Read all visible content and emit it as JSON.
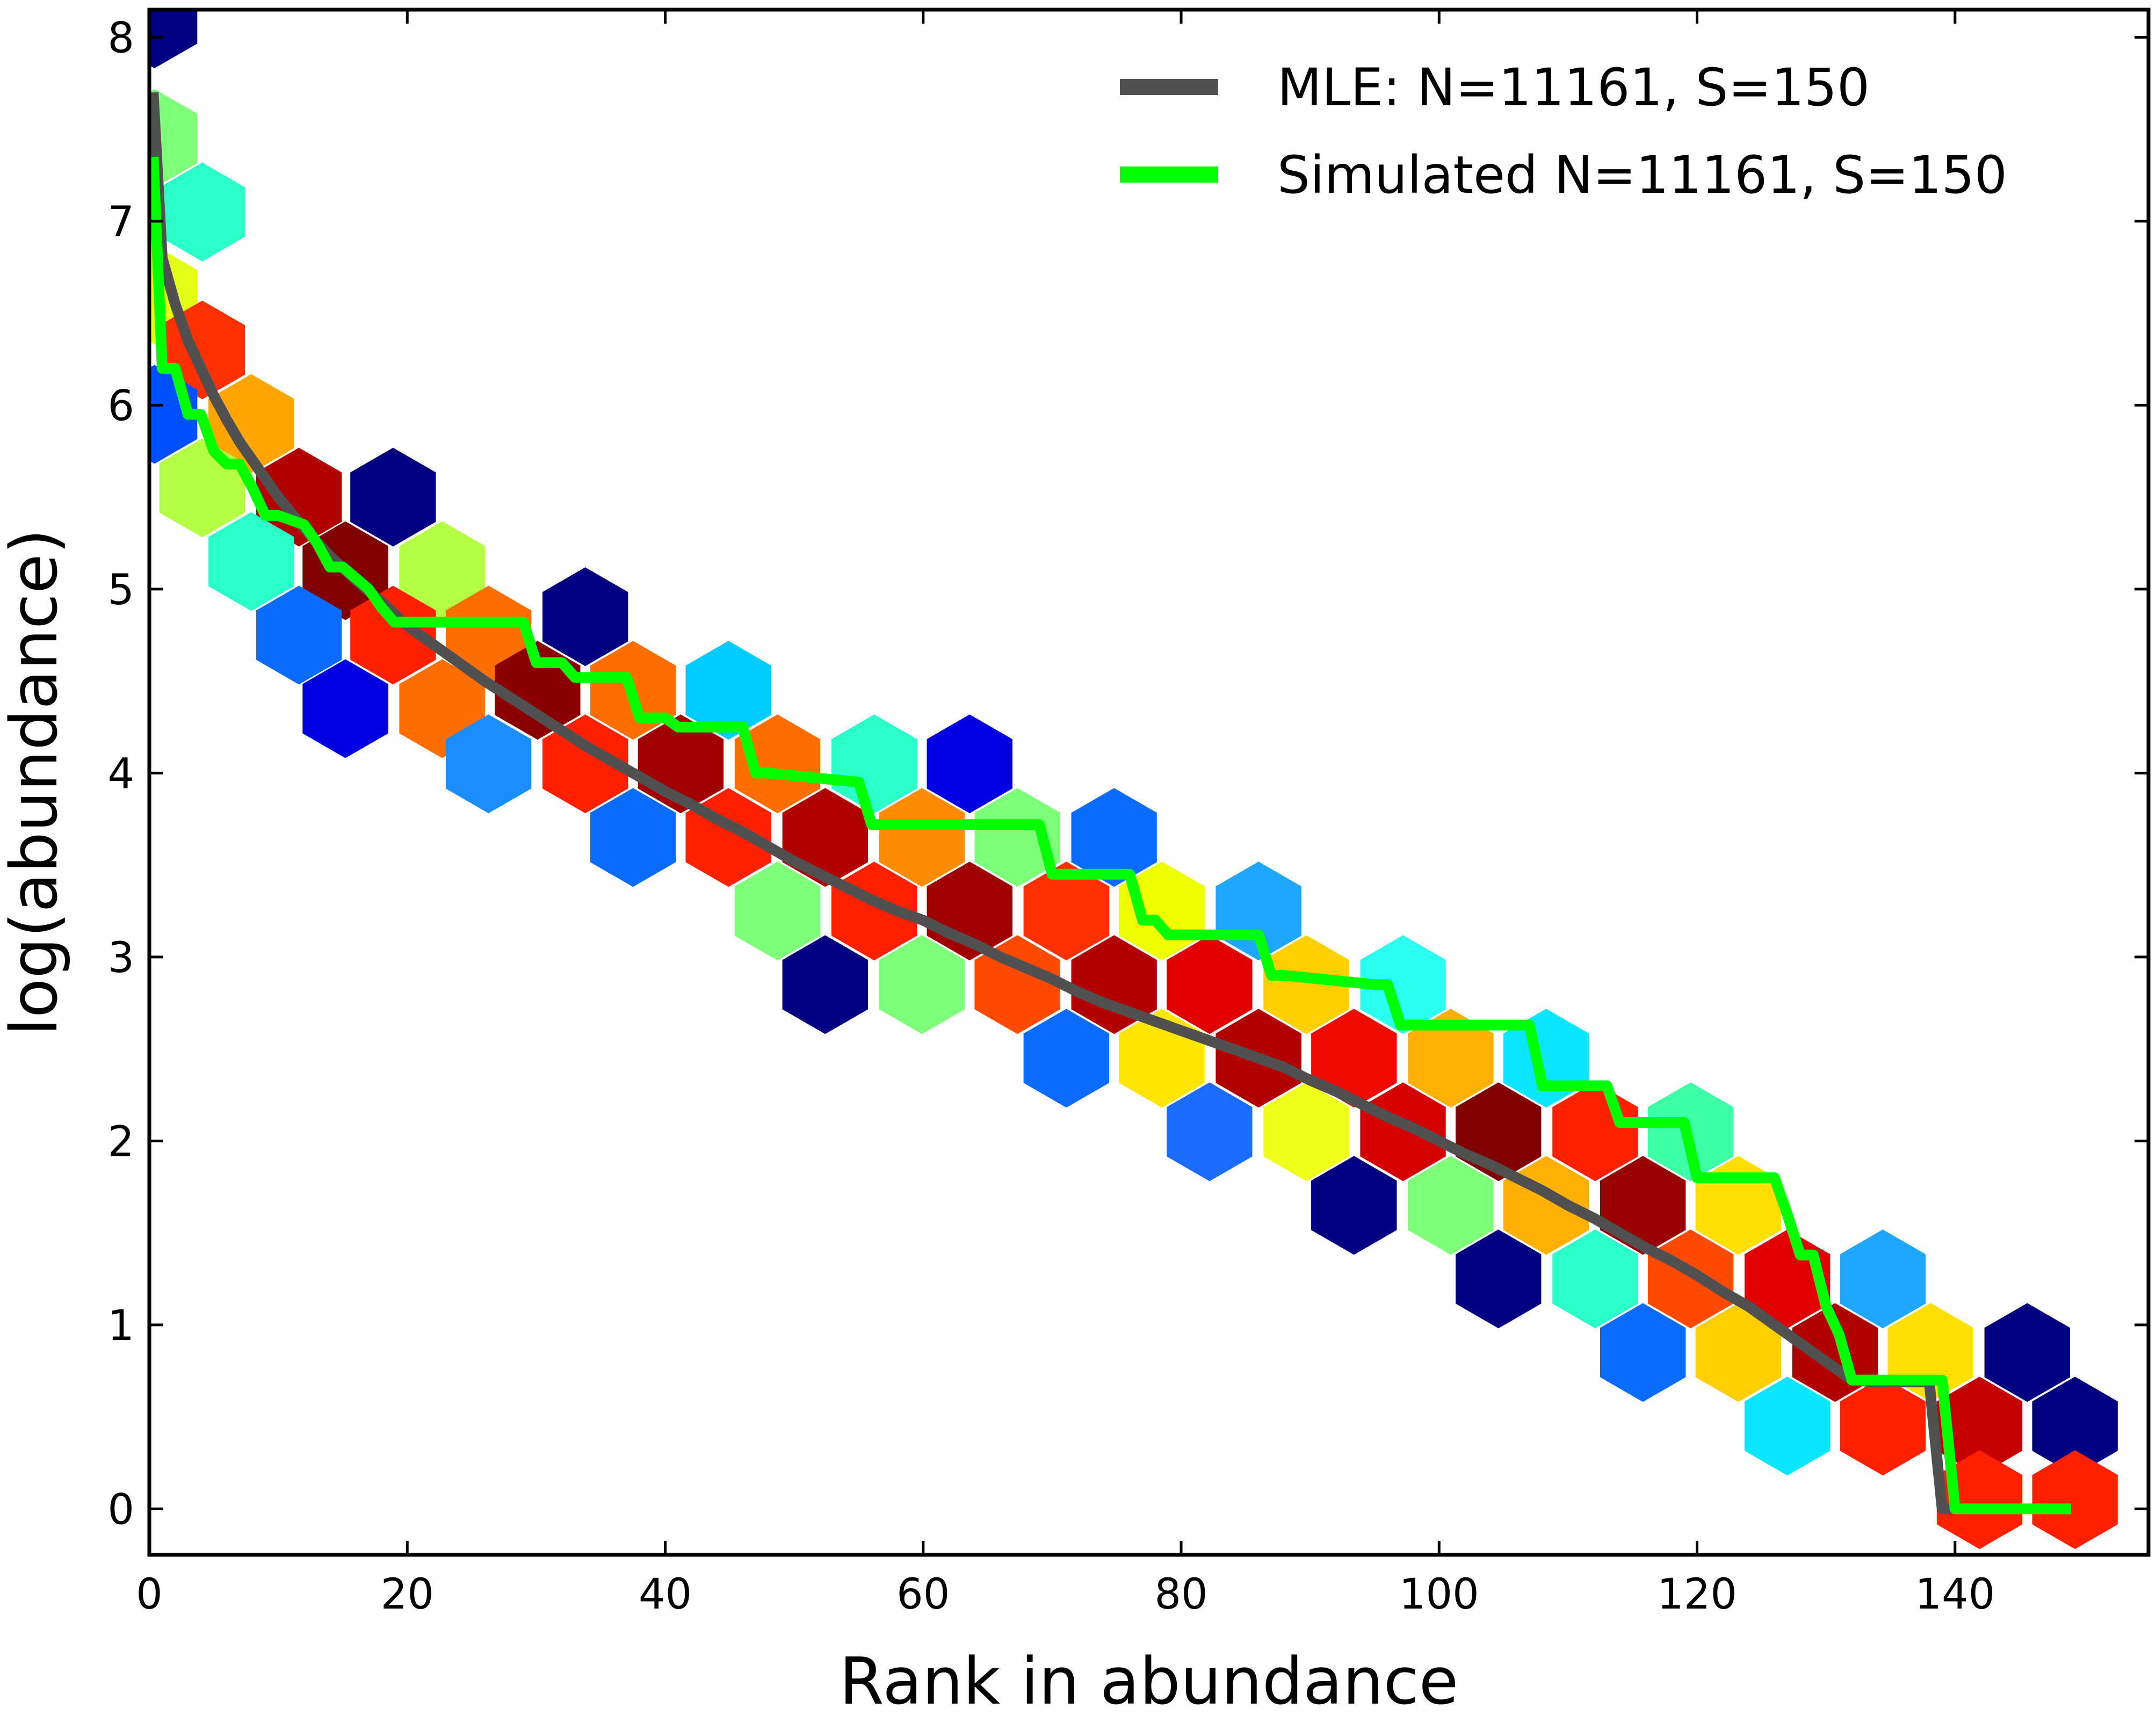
{
  "chart_data": {
    "type": "hexbin",
    "title": "",
    "xlabel": "Rank in abundance",
    "ylabel": "log(abundance)",
    "xlim": [
      0,
      155
    ],
    "ylim": [
      -0.25,
      8.15
    ],
    "xticks": [
      0,
      20,
      40,
      60,
      80,
      100,
      120,
      140
    ],
    "yticks": [
      0,
      1,
      2,
      3,
      4,
      5,
      6,
      7,
      8
    ],
    "grid": false,
    "legend_position": "top-right",
    "colormap": "jet",
    "hexbins": [
      {
        "x": 0.4,
        "y": 8.1,
        "color": "#000080"
      },
      {
        "x": 0.4,
        "y": 7.45,
        "color": "#7dff7a"
      },
      {
        "x": 4.1,
        "y": 7.05,
        "color": "#2bffca"
      },
      {
        "x": 0.4,
        "y": 6.6,
        "color": "#e4ff13"
      },
      {
        "x": 4.1,
        "y": 6.3,
        "color": "#ff3000"
      },
      {
        "x": 0.4,
        "y": 5.95,
        "color": "#0050ff"
      },
      {
        "x": 7.9,
        "y": 5.9,
        "color": "#ffa600"
      },
      {
        "x": 4.1,
        "y": 5.55,
        "color": "#b4ff43"
      },
      {
        "x": 11.6,
        "y": 5.5,
        "color": "#b20000"
      },
      {
        "x": 18.9,
        "y": 5.5,
        "color": "#000080"
      },
      {
        "x": 15.2,
        "y": 5.1,
        "color": "#800000"
      },
      {
        "x": 22.7,
        "y": 5.1,
        "color": "#b4ff43"
      },
      {
        "x": 7.9,
        "y": 5.15,
        "color": "#2bffca"
      },
      {
        "x": 11.6,
        "y": 4.75,
        "color": "#0a6cff"
      },
      {
        "x": 18.9,
        "y": 4.75,
        "color": "#ff2000"
      },
      {
        "x": 26.3,
        "y": 4.75,
        "color": "#ff6f00"
      },
      {
        "x": 33.8,
        "y": 4.85,
        "color": "#000080"
      },
      {
        "x": 15.2,
        "y": 4.35,
        "color": "#0000e0"
      },
      {
        "x": 22.7,
        "y": 4.35,
        "color": "#ff6f00"
      },
      {
        "x": 30.1,
        "y": 4.45,
        "color": "#8a0000"
      },
      {
        "x": 37.5,
        "y": 4.45,
        "color": "#ff6f00"
      },
      {
        "x": 44.9,
        "y": 4.45,
        "color": "#00ccff"
      },
      {
        "x": 26.3,
        "y": 4.05,
        "color": "#1b8dff"
      },
      {
        "x": 33.8,
        "y": 4.05,
        "color": "#ff2000"
      },
      {
        "x": 41.2,
        "y": 4.05,
        "color": "#a00000"
      },
      {
        "x": 48.7,
        "y": 4.05,
        "color": "#ff6f00"
      },
      {
        "x": 56.2,
        "y": 4.05,
        "color": "#2bffca"
      },
      {
        "x": 63.6,
        "y": 4.05,
        "color": "#0000e0"
      },
      {
        "x": 37.5,
        "y": 3.65,
        "color": "#0a6cff"
      },
      {
        "x": 44.9,
        "y": 3.65,
        "color": "#ff2000"
      },
      {
        "x": 52.4,
        "y": 3.65,
        "color": "#b20000"
      },
      {
        "x": 59.9,
        "y": 3.65,
        "color": "#ff8c00"
      },
      {
        "x": 67.3,
        "y": 3.65,
        "color": "#7dff7a"
      },
      {
        "x": 74.8,
        "y": 3.65,
        "color": "#0a6cff"
      },
      {
        "x": 48.7,
        "y": 3.25,
        "color": "#7dff7a"
      },
      {
        "x": 56.2,
        "y": 3.25,
        "color": "#ff2000"
      },
      {
        "x": 63.6,
        "y": 3.25,
        "color": "#a00000"
      },
      {
        "x": 71.1,
        "y": 3.25,
        "color": "#ff3000"
      },
      {
        "x": 78.5,
        "y": 3.25,
        "color": "#eeff00"
      },
      {
        "x": 86.0,
        "y": 3.25,
        "color": "#1fa6ff"
      },
      {
        "x": 52.4,
        "y": 2.85,
        "color": "#000080"
      },
      {
        "x": 59.9,
        "y": 2.85,
        "color": "#7dff7a"
      },
      {
        "x": 67.3,
        "y": 2.85,
        "color": "#ff4a00"
      },
      {
        "x": 74.8,
        "y": 2.85,
        "color": "#b20000"
      },
      {
        "x": 82.2,
        "y": 2.85,
        "color": "#e00000"
      },
      {
        "x": 89.7,
        "y": 2.85,
        "color": "#ffd000"
      },
      {
        "x": 97.2,
        "y": 2.85,
        "color": "#2bfff0"
      },
      {
        "x": 71.1,
        "y": 2.45,
        "color": "#0a6cff"
      },
      {
        "x": 78.5,
        "y": 2.45,
        "color": "#ffe600"
      },
      {
        "x": 86.0,
        "y": 2.45,
        "color": "#b20000"
      },
      {
        "x": 93.4,
        "y": 2.45,
        "color": "#ee0a00"
      },
      {
        "x": 100.9,
        "y": 2.45,
        "color": "#ffb000"
      },
      {
        "x": 108.3,
        "y": 2.45,
        "color": "#0ae6ff"
      },
      {
        "x": 82.2,
        "y": 2.05,
        "color": "#1b6bff"
      },
      {
        "x": 89.7,
        "y": 2.05,
        "color": "#eeff1a"
      },
      {
        "x": 97.2,
        "y": 2.05,
        "color": "#d40000"
      },
      {
        "x": 104.6,
        "y": 2.05,
        "color": "#800000"
      },
      {
        "x": 112.1,
        "y": 2.05,
        "color": "#ff2000"
      },
      {
        "x": 119.5,
        "y": 2.05,
        "color": "#3dffa6"
      },
      {
        "x": 93.4,
        "y": 1.65,
        "color": "#000080"
      },
      {
        "x": 100.9,
        "y": 1.65,
        "color": "#7dff7a"
      },
      {
        "x": 108.3,
        "y": 1.65,
        "color": "#ffb000"
      },
      {
        "x": 115.8,
        "y": 1.65,
        "color": "#980000"
      },
      {
        "x": 123.2,
        "y": 1.65,
        "color": "#ffe000"
      },
      {
        "x": 104.6,
        "y": 1.25,
        "color": "#000080"
      },
      {
        "x": 112.1,
        "y": 1.25,
        "color": "#2bffca"
      },
      {
        "x": 119.5,
        "y": 1.25,
        "color": "#ff4a00"
      },
      {
        "x": 127.0,
        "y": 1.25,
        "color": "#e00000"
      },
      {
        "x": 134.4,
        "y": 1.25,
        "color": "#1fa6ff"
      },
      {
        "x": 115.8,
        "y": 0.85,
        "color": "#0a6cff"
      },
      {
        "x": 123.2,
        "y": 0.85,
        "color": "#ffd000"
      },
      {
        "x": 130.7,
        "y": 0.85,
        "color": "#b00000"
      },
      {
        "x": 138.1,
        "y": 0.85,
        "color": "#ffe000"
      },
      {
        "x": 145.6,
        "y": 0.85,
        "color": "#000080"
      },
      {
        "x": 127.0,
        "y": 0.45,
        "color": "#0ae6ff"
      },
      {
        "x": 134.4,
        "y": 0.45,
        "color": "#ff2000"
      },
      {
        "x": 141.9,
        "y": 0.45,
        "color": "#c40000"
      },
      {
        "x": 149.3,
        "y": 0.45,
        "color": "#000080"
      },
      {
        "x": 141.9,
        "y": 0.05,
        "color": "#ff2000"
      },
      {
        "x": 149.3,
        "y": 0.05,
        "color": "#ff2000"
      }
    ],
    "series": [
      {
        "name": "MLE: N=11161, S=150",
        "color": "#505050",
        "x": [
          0.3,
          1,
          2,
          3,
          4,
          5,
          6,
          7,
          8,
          9,
          10,
          12,
          14,
          16,
          18,
          20,
          22,
          24,
          26,
          28,
          30,
          32,
          34,
          36,
          38,
          40,
          42,
          44,
          46,
          48,
          50,
          52,
          54,
          56,
          58,
          60,
          62,
          64,
          66,
          68,
          70,
          72,
          74,
          76,
          78,
          80,
          82,
          84,
          86,
          88,
          90,
          92,
          94,
          96,
          98,
          100,
          102,
          104,
          106,
          108,
          110,
          112,
          114,
          116,
          118,
          120,
          122,
          124,
          126,
          128,
          130,
          132,
          134,
          136,
          138,
          139,
          141
        ],
        "y": [
          7.7,
          6.8,
          6.55,
          6.35,
          6.2,
          6.05,
          5.92,
          5.8,
          5.7,
          5.6,
          5.5,
          5.33,
          5.18,
          5.05,
          4.93,
          4.8,
          4.7,
          4.6,
          4.5,
          4.41,
          4.32,
          4.23,
          4.14,
          4.06,
          3.98,
          3.9,
          3.83,
          3.75,
          3.68,
          3.6,
          3.52,
          3.45,
          3.38,
          3.31,
          3.25,
          3.2,
          3.13,
          3.07,
          3.0,
          2.94,
          2.88,
          2.81,
          2.75,
          2.7,
          2.65,
          2.6,
          2.55,
          2.5,
          2.45,
          2.4,
          2.33,
          2.27,
          2.2,
          2.13,
          2.07,
          2.0,
          1.93,
          1.87,
          1.8,
          1.73,
          1.65,
          1.58,
          1.5,
          1.42,
          1.35,
          1.27,
          1.18,
          1.1,
          1.0,
          0.9,
          0.8,
          0.7,
          0.69,
          0.69,
          0.69,
          0.0,
          0.0
        ]
      },
      {
        "name": "Simulated N=11161, S=150",
        "color": "#00ff00",
        "x": [
          0.3,
          1,
          2,
          3,
          4,
          5,
          6,
          7,
          8,
          9,
          10,
          12,
          13,
          14,
          15,
          17,
          18,
          19,
          20,
          29,
          30,
          32,
          33,
          34,
          37,
          38,
          40,
          41,
          46,
          47,
          48,
          55,
          56,
          57,
          68,
          69,
          70,
          71,
          76,
          77,
          78,
          79,
          86,
          87,
          88,
          95,
          96,
          97,
          107,
          108,
          109,
          113,
          114,
          115,
          119,
          120,
          121,
          126,
          127,
          128,
          129,
          130,
          131,
          132,
          138,
          139,
          140,
          149
        ],
        "y": [
          7.35,
          6.2,
          6.2,
          5.95,
          5.95,
          5.75,
          5.68,
          5.68,
          5.55,
          5.4,
          5.4,
          5.35,
          5.25,
          5.12,
          5.12,
          5.0,
          4.9,
          4.82,
          4.82,
          4.82,
          4.6,
          4.6,
          4.52,
          4.52,
          4.52,
          4.3,
          4.3,
          4.25,
          4.25,
          4.0,
          4.0,
          3.95,
          3.72,
          3.72,
          3.72,
          3.72,
          3.45,
          3.45,
          3.45,
          3.2,
          3.2,
          3.12,
          3.12,
          2.9,
          2.9,
          2.85,
          2.85,
          2.63,
          2.63,
          2.3,
          2.3,
          2.3,
          2.1,
          2.1,
          2.1,
          1.8,
          1.8,
          1.8,
          1.6,
          1.38,
          1.38,
          1.1,
          0.95,
          0.7,
          0.7,
          0.7,
          0.0,
          0.0
        ]
      }
    ]
  }
}
